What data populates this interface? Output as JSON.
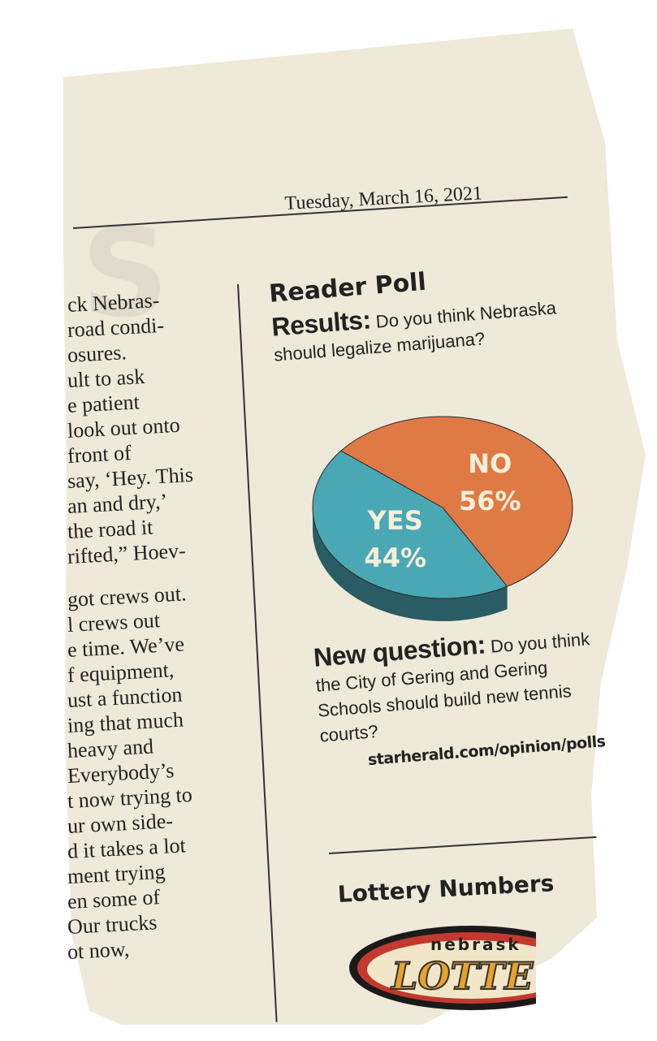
{
  "date": "Tuesday, March 16, 2021",
  "left_column": {
    "lines": [
      "ck Nebras-",
      "road condi-",
      "osures.",
      "ult to ask",
      "e patient",
      "look out onto",
      "front of",
      "say, ‘Hey. This",
      "an and dry,’",
      "the road it",
      "rifted,” Hoev-",
      "",
      "got crews out.",
      "l crews out",
      "e time. We’ve",
      "f equipment,",
      "ust a function",
      "ing that much",
      "heavy and",
      "Everybody’s",
      "t now trying to",
      "ur own side-",
      "d it takes a lot",
      "ment trying",
      "en some of",
      "Our trucks",
      "ot now,"
    ]
  },
  "poll": {
    "heading": "Reader Poll",
    "results_label": "Results:",
    "question": "Do you think Nebraska should legalize marijuana?",
    "new_question_label": "New question:",
    "new_question": "Do you think the City of Gering and Gering Schools should build new tennis courts?",
    "url": "starherald.com/opinion/polls"
  },
  "chart_data": {
    "type": "pie",
    "categories": [
      "YES",
      "NO"
    ],
    "values": [
      44,
      56
    ],
    "labels": [
      "44%",
      "56%"
    ],
    "colors": [
      "#4aa8b4",
      "#e07a45"
    ]
  },
  "lottery": {
    "heading": "Lottery Numbers",
    "logo_top": "nebrask",
    "logo_main": "LOTTE"
  }
}
